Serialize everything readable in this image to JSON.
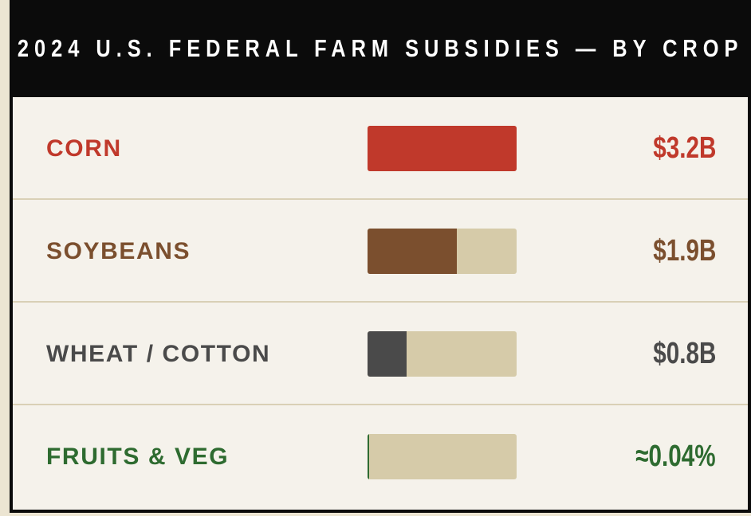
{
  "header": {
    "title": "2024 U.S. FEDERAL FARM SUBSIDIES — BY CROP"
  },
  "rows": [
    {
      "label": "CORN",
      "amount": "$3.2B",
      "fill": 100,
      "color": "#c0392b"
    },
    {
      "label": "SOYBEANS",
      "amount": "$1.9B",
      "fill": 60,
      "color": "#7b4f2e"
    },
    {
      "label": "WHEAT / COTTON",
      "amount": "$0.8B",
      "fill": 26,
      "color": "#4a4a4a"
    },
    {
      "label": "FRUITS & VEG",
      "amount": "≈0.04%",
      "fill": 1,
      "color": "#2e6b30"
    }
  ]
}
